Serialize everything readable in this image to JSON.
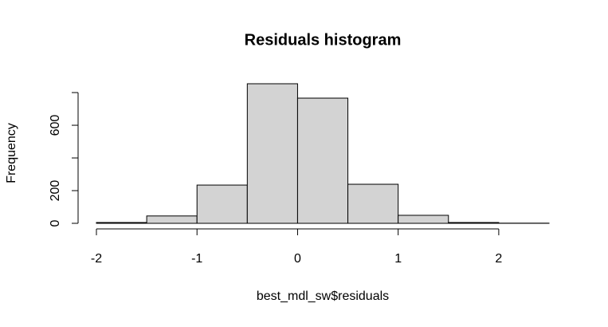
{
  "chart_data": {
    "type": "histogram",
    "title": "Residuals histogram",
    "x_label": "best_mdl_sw$residuals",
    "y_label": "Frequency",
    "bins": [
      -2,
      -1.5,
      -1,
      -0.5,
      0,
      0.5,
      1,
      1.5,
      2,
      2.5
    ],
    "values": [
      5,
      45,
      234,
      854,
      766,
      239,
      49,
      5,
      1
    ],
    "color": "#d3d3d3",
    "xlim": [
      -2,
      2.5
    ],
    "xticks": [
      -2,
      -1,
      0,
      1,
      2
    ],
    "ylim": [
      0,
      854
    ],
    "yticks": [
      0,
      200,
      {
        "value": 400,
        "label": null
      },
      600,
      {
        "value": 800,
        "label": null
      }
    ]
  }
}
